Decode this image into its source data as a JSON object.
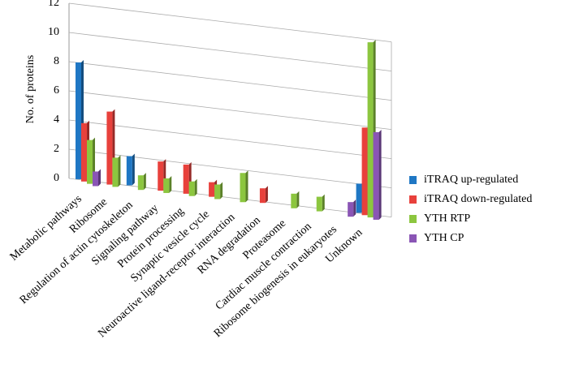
{
  "chart_data": {
    "type": "bar",
    "y_label": "No. of  proteins",
    "categories": [
      "Metabolic pathways",
      "Ribosome",
      "Regulation of actin cytoskeleton",
      "Signaling pathway",
      "Protein processing",
      "Synaptic vesicle cycle",
      "Neuroactive ligand-receptor interaction",
      "RNA degradation",
      "Proteasome",
      "Cardiac muscle contraction",
      "Ribosome biogenesis in eukaryotes",
      "Unknown"
    ],
    "series": [
      {
        "name": "iTRAQ up-regulated",
        "color": "#1f77c4",
        "values": [
          8,
          0,
          2,
          0,
          0,
          0,
          0,
          0,
          0,
          0,
          0,
          2
        ]
      },
      {
        "name": "iTRAQ down-regulated",
        "color": "#e8413c",
        "values": [
          4,
          5,
          0,
          2,
          2,
          1,
          0,
          1,
          0,
          0,
          0,
          6
        ]
      },
      {
        "name": "YTH RTP",
        "color": "#8cc63f",
        "values": [
          3,
          2,
          1,
          1,
          1,
          1,
          2,
          0,
          1,
          1,
          0,
          12
        ]
      },
      {
        "name": "YTH CP",
        "color": "#8a55b5",
        "values": [
          1,
          0,
          0,
          0,
          0,
          0,
          0,
          0,
          0,
          0,
          1,
          6
        ]
      }
    ],
    "ylim": [
      0,
      12
    ],
    "yticks": [
      0,
      2,
      4,
      6,
      8,
      10,
      12
    ],
    "grid": true
  }
}
